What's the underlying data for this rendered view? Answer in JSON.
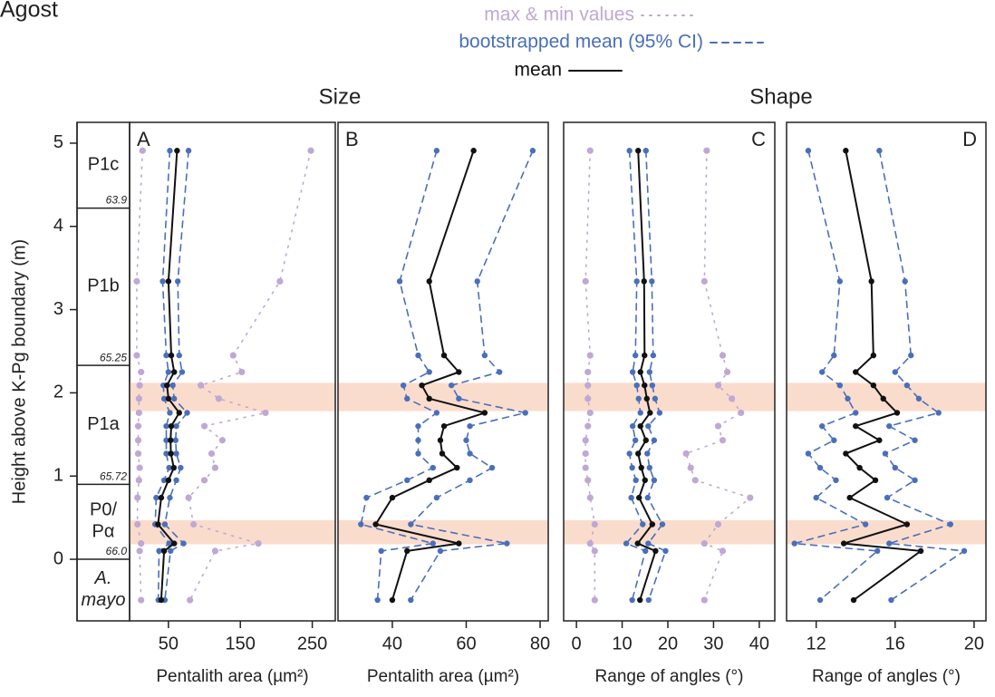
{
  "chart_data": {
    "type": "line",
    "title": "Agost",
    "headings": [
      "Size",
      "Shape"
    ],
    "legend": [
      {
        "name": "max & min values",
        "color": "#bfa8d4",
        "dash": "2,7"
      },
      {
        "name": "bootstrapped mean (95% CI)",
        "color": "#4a6fba",
        "dash": "7,6"
      },
      {
        "name": "mean",
        "color": "#111111",
        "dash": "none"
      }
    ],
    "ylabel": "Height above K-Pg boundary (m)",
    "ylim": [
      -0.74,
      5.25
    ],
    "yticks": [
      0,
      1,
      2,
      3,
      4,
      5
    ],
    "y": [
      4.91,
      3.34,
      2.45,
      2.25,
      2.09,
      1.93,
      1.76,
      1.6,
      1.43,
      1.27,
      1.1,
      0.95,
      0.74,
      0.42,
      0.19,
      0.1,
      -0.49
    ],
    "zones": [
      "P1c",
      "P1b",
      "P1a",
      "P0/\nPα",
      "A.\nmayo"
    ],
    "zone_boundaries": [
      {
        "value": 4.22,
        "label": "63.9"
      },
      {
        "value": 2.33,
        "label": "65.25"
      },
      {
        "value": 0.9,
        "label": "65.72"
      },
      {
        "value": 0,
        "label": "66.0"
      }
    ],
    "bands": [
      [
        1.78,
        2.12
      ],
      [
        0.18,
        0.47
      ]
    ],
    "band_color": "#fadccd",
    "area": {
      "mean": [
        62,
        50,
        54,
        58,
        48,
        50,
        65,
        54,
        53,
        53.5,
        57.5,
        50,
        40,
        35.5,
        58,
        44,
        40
      ],
      "ci_low": [
        52,
        42,
        47,
        50,
        43,
        44,
        52,
        47,
        47,
        47,
        51,
        44,
        33,
        31.5,
        51,
        37,
        36
      ],
      "ci_high": [
        78,
        63,
        65,
        69,
        56,
        58,
        76,
        61,
        60,
        61,
        67,
        61,
        52,
        45,
        71,
        53,
        45
      ],
      "min": [
        14,
        6,
        6,
        12,
        10,
        9,
        9,
        8,
        8,
        8,
        10,
        9,
        7,
        7,
        12,
        10,
        12
      ],
      "max": [
        248,
        205,
        140,
        152,
        95,
        120,
        185,
        100,
        125,
        110,
        115,
        100,
        78,
        85,
        175,
        115,
        80
      ]
    },
    "angle": {
      "mean": [
        13.5,
        14.8,
        14.9,
        14,
        14.9,
        15.4,
        16.1,
        14,
        15.2,
        13.5,
        14.2,
        15,
        13.7,
        16.6,
        13.4,
        17.3,
        13.9
      ],
      "ci_low": [
        11.6,
        13.2,
        12.9,
        12.3,
        13.2,
        13.6,
        14,
        12.3,
        12.9,
        11.6,
        12.2,
        13,
        12,
        14.5,
        10.9,
        15.1,
        12.2
      ],
      "ci_high": [
        15.2,
        16.5,
        16.8,
        16,
        16.6,
        17.2,
        18.2,
        15.7,
        17,
        15.5,
        16,
        17,
        15.6,
        18.8,
        15.7,
        19.5,
        15.8
      ],
      "min": [
        3,
        2,
        3,
        2.5,
        2.5,
        2.5,
        3,
        2.5,
        2,
        2,
        2,
        2.5,
        3,
        4,
        3,
        4,
        4
      ],
      "max": [
        28.5,
        28,
        32,
        33,
        31,
        34,
        36,
        31,
        32,
        24,
        25,
        26,
        38,
        31,
        28,
        32,
        28
      ]
    },
    "panels": [
      {
        "label": "A",
        "variable": "area",
        "range": true,
        "xlabel": "Pentalith area (µm²)",
        "xlim": [
          -4,
          282
        ],
        "xticks": [
          50,
          150,
          250
        ]
      },
      {
        "label": "B",
        "variable": "area",
        "range": false,
        "xlabel": "Pentalith area (µm²)",
        "xlim": [
          25.3,
          82.2
        ],
        "xticks": [
          40,
          60,
          80
        ]
      },
      {
        "label": "C",
        "variable": "angle",
        "range": true,
        "xlabel": "Range of angles (°)",
        "xlim": [
          -2.8,
          43.4
        ],
        "xticks": [
          0,
          10,
          20,
          30,
          40
        ]
      },
      {
        "label": "D",
        "variable": "angle",
        "range": false,
        "xlabel": "Range of angles (°)",
        "xlim": [
          10.5,
          20.6
        ],
        "xticks": [
          12,
          16,
          20
        ]
      }
    ]
  }
}
